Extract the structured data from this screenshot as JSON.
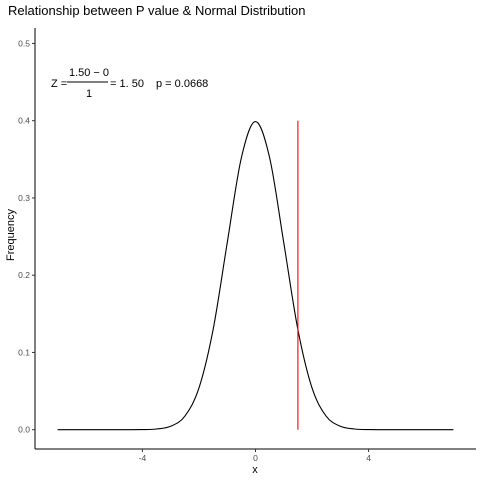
{
  "chart_data": {
    "type": "line",
    "title": "Relationship between P value & Normal Distribution",
    "xlabel": "x",
    "ylabel": "Frequency",
    "xlim": [
      -7.8,
      7.8
    ],
    "ylim": [
      -0.025,
      0.52
    ],
    "x_ticks": [
      -4,
      0,
      4
    ],
    "y_ticks": [
      0.0,
      0.1,
      0.2,
      0.3,
      0.4,
      0.5
    ],
    "x_tick_labels": [
      "-4",
      "0",
      "4"
    ],
    "y_tick_labels": [
      "0.0",
      "0.1",
      "0.2",
      "0.3",
      "0.4",
      "0.5"
    ],
    "grid": false,
    "series": [
      {
        "color": "#000000",
        "x": [
          -7,
          -6,
          -5,
          -4,
          -3.5,
          -3,
          -2.5,
          -2,
          -1.5,
          -1,
          -0.5,
          0,
          0.5,
          1,
          1.5,
          2,
          2.5,
          3,
          3.5,
          4,
          5,
          6,
          7
        ],
        "y": [
          0.0,
          0.0,
          0.0,
          0.0001,
          0.0009,
          0.0044,
          0.0175,
          0.054,
          0.1295,
          0.242,
          0.3521,
          0.3989,
          0.3521,
          0.242,
          0.1295,
          0.054,
          0.0175,
          0.0044,
          0.0009,
          0.0001,
          0.0,
          0.0,
          0.0
        ]
      }
    ],
    "vline": {
      "x": 1.5,
      "y_from": 0.0,
      "y_to": 0.4,
      "color": "#ff0000"
    },
    "annotation": {
      "z_prefix": "Z =",
      "numerator": "1.50 − 0",
      "denominator": "1",
      "z_result": "= 1. 50",
      "p_text": "p =  0.0668"
    }
  }
}
